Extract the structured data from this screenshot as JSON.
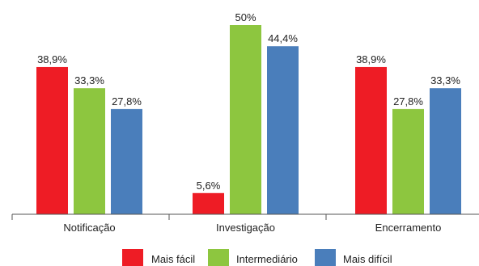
{
  "chart_data": {
    "type": "bar",
    "categories": [
      "Notificação",
      "Investigação",
      "Encerramento"
    ],
    "series": [
      {
        "name": "Mais fácil",
        "values": [
          38.9,
          5.6,
          38.9
        ],
        "labels": [
          "38,9%",
          "5,6%",
          "38,9%"
        ],
        "color": "#ee1c25"
      },
      {
        "name": "Intermediário",
        "values": [
          33.3,
          50,
          27.8
        ],
        "labels": [
          "33,3%",
          "50%",
          "27,8%"
        ],
        "color": "#8dc63f"
      },
      {
        "name": "Mais difícil",
        "values": [
          27.8,
          44.4,
          33.3
        ],
        "labels": [
          "27,8%",
          "44,4%",
          "33,3%"
        ],
        "color": "#4a7ebb"
      }
    ],
    "ylim": [
      0,
      50
    ],
    "grid": false,
    "legend_position": "bottom"
  }
}
